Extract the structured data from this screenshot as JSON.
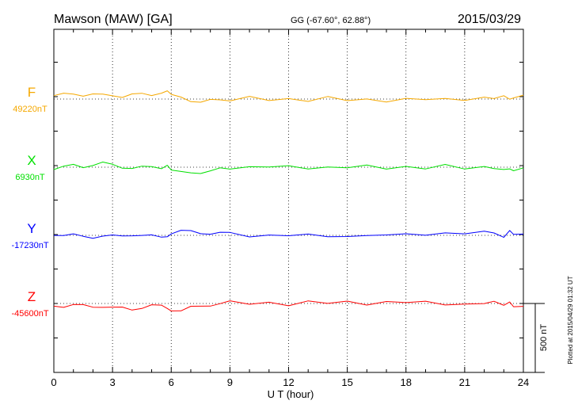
{
  "header": {
    "station": "Mawson (MAW)  [GA]",
    "coords": "GG (-67.60°,  62.88°)",
    "date": "2015/03/29"
  },
  "plotted_note": "Plotted at 2015/04/29 01:32 UT",
  "scale_label": "500 nT",
  "chart_data": {
    "type": "line",
    "title": "Mawson (MAW)  [GA]",
    "xlabel": "U T (hour)",
    "xlim": [
      0,
      24
    ],
    "xticks": [
      "0",
      "3",
      "6",
      "9",
      "12",
      "15",
      "18",
      "21",
      "24"
    ],
    "grid": true,
    "scale_bar_nT": 500,
    "x": [
      0,
      0.5,
      1,
      1.5,
      2,
      2.5,
      3,
      3.5,
      4,
      4.5,
      5,
      5.5,
      5.8,
      6,
      6.5,
      7,
      7.5,
      8,
      8.5,
      9,
      10,
      11,
      12,
      13,
      14,
      15,
      16,
      17,
      18,
      19,
      20,
      21,
      22,
      22.5,
      23,
      23.3,
      23.5,
      24
    ],
    "series": [
      {
        "name": "F",
        "baseline_label": "49220nT",
        "baseline_nT": 49220,
        "color": "#f5a800",
        "values": [
          25,
          25,
          30,
          27,
          32,
          27,
          35,
          30,
          35,
          30,
          27,
          45,
          48,
          20,
          5,
          -5,
          -8,
          -6,
          -9,
          -5,
          0,
          2,
          -2,
          -3,
          -1,
          -3,
          -5,
          -6,
          -9,
          -2,
          0,
          3,
          8,
          10,
          20,
          -5,
          -10,
          25
        ]
      },
      {
        "name": "X",
        "baseline_label": "6930nT",
        "baseline_nT": 6930,
        "color": "#00e000",
        "values": [
          0,
          7,
          15,
          4,
          15,
          20,
          8,
          2,
          1,
          3,
          6,
          4,
          8,
          -20,
          -50,
          -50,
          -38,
          -26,
          -12,
          -5,
          2,
          -1,
          1,
          0,
          -2,
          1,
          -1,
          0,
          1,
          -1,
          0,
          -2,
          0,
          0,
          -1,
          -15,
          -32,
          -22
        ]
      },
      {
        "name": "Y",
        "baseline_label": "-17230nT",
        "baseline_nT": -17230,
        "color": "#0000ff",
        "values": [
          5,
          2,
          3,
          -3,
          -2,
          -1,
          -12,
          -10,
          2,
          -7,
          -9,
          -5,
          -18,
          30,
          38,
          25,
          15,
          12,
          8,
          8,
          3,
          0,
          -1,
          -2,
          -4,
          -3,
          -2,
          -3,
          7,
          12,
          15,
          12,
          16,
          8,
          0,
          22,
          22,
          5
        ]
      },
      {
        "name": "Z",
        "baseline_label": "-45600nT",
        "baseline_nT": -45600,
        "color": "#ff0000",
        "values": [
          -20,
          -22,
          -18,
          -25,
          -22,
          -12,
          -25,
          -30,
          -38,
          -30,
          -25,
          -28,
          -38,
          -48,
          -45,
          -25,
          -18,
          -2,
          4,
          3,
          0,
          -1,
          3,
          6,
          5,
          4,
          6,
          8,
          9,
          4,
          0,
          -3,
          0,
          -3,
          -22,
          2,
          -15,
          -20
        ]
      }
    ]
  }
}
